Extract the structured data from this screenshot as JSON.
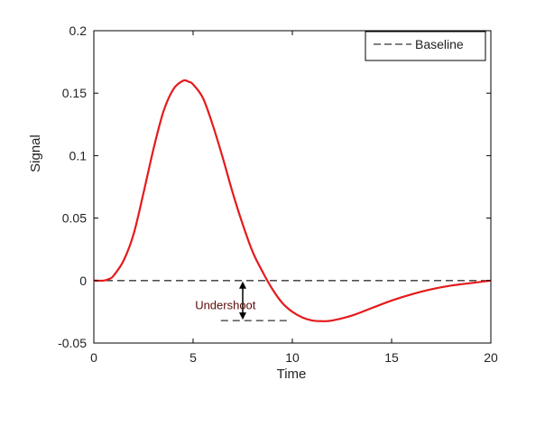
{
  "chart_data": {
    "type": "line",
    "xlabel": "Time",
    "ylabel": "Signal",
    "xlim": [
      0,
      20
    ],
    "ylim": [
      -0.05,
      0.2
    ],
    "xticks": [
      0,
      5,
      10,
      15,
      20
    ],
    "xtick_labels": [
      "0",
      "5",
      "10",
      "15",
      "20"
    ],
    "yticks": [
      -0.05,
      0,
      0.05,
      0.1,
      0.15,
      0.2
    ],
    "ytick_labels": [
      "-0.05",
      "0",
      "0.05",
      "0.1",
      "0.15",
      "0.2"
    ],
    "grid": false,
    "legend": {
      "position": "top-right",
      "entries": [
        "Baseline"
      ]
    },
    "series": [
      {
        "style": "solid",
        "color": "#e41a1c",
        "x": [
          0,
          0.5,
          0.8,
          1,
          1.5,
          2,
          2.5,
          3,
          3.5,
          4,
          4.5,
          4.8,
          5,
          5.5,
          6,
          6.5,
          7,
          7.5,
          8,
          8.5,
          9,
          9.5,
          10,
          10.5,
          11,
          11.5,
          12,
          13,
          14,
          15,
          16,
          17,
          18,
          19,
          20
        ],
        "y": [
          0,
          0,
          0.0015,
          0.004,
          0.016,
          0.037,
          0.07,
          0.105,
          0.135,
          0.153,
          0.16,
          0.159,
          0.157,
          0.146,
          0.124,
          0.098,
          0.07,
          0.045,
          0.023,
          0.007,
          -0.007,
          -0.018,
          -0.025,
          -0.0295,
          -0.032,
          -0.0325,
          -0.032,
          -0.028,
          -0.022,
          -0.016,
          -0.011,
          -0.007,
          -0.004,
          -0.002,
          0
        ]
      },
      {
        "name": "Baseline",
        "style": "dashed",
        "color": "#333333",
        "x": [
          0,
          20
        ],
        "y": [
          0,
          0
        ]
      }
    ],
    "annotations": [
      {
        "text": "Undershoot",
        "x": 5.1,
        "y": -0.02
      },
      {
        "type": "double-arrow",
        "x": 7.5,
        "y_from": 0,
        "y_to": -0.032
      },
      {
        "type": "dashed-segment",
        "x_from": 6.4,
        "x_to": 9.8,
        "y": -0.032
      }
    ]
  }
}
